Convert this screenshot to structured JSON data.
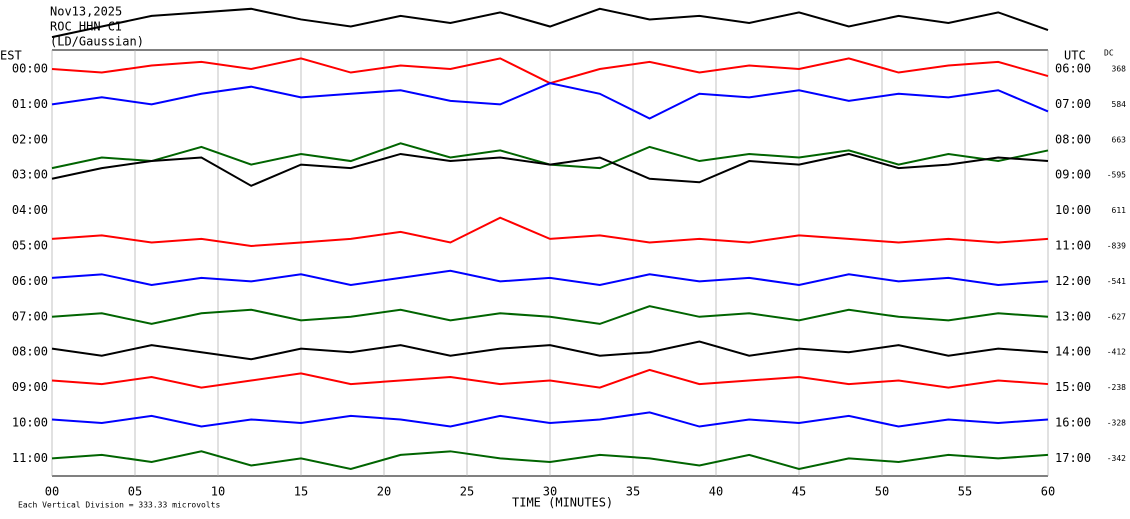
{
  "header": {
    "date": "Nov13,2025",
    "station": "ROC HHN CI",
    "filter": "(LD/Gaussian)"
  },
  "chart_data": {
    "type": "line",
    "left_axis_label": "EST",
    "right_axis_label": "UTC",
    "dc_label": "DC",
    "x_label": "TIME (MINUTES)",
    "footnote": "Each Vertical Division = 333.33 microvolts",
    "x": [
      0,
      3,
      6,
      9,
      12,
      15,
      18,
      21,
      24,
      27,
      30,
      33,
      36,
      39,
      42,
      45,
      48,
      51,
      54,
      57,
      60
    ],
    "xlim": [
      0,
      60
    ],
    "xticks": [
      {
        "value": 0,
        "label": "00"
      },
      {
        "value": 5,
        "label": "05"
      },
      10,
      15,
      20,
      25,
      30,
      35,
      40,
      45,
      50,
      55,
      60
    ],
    "grid": true,
    "series": [
      {
        "name": "00:00",
        "utc": "06:00",
        "dc": "368",
        "color": "#000000",
        "values": [
          0.9,
          1.2,
          1.5,
          1.6,
          1.7,
          1.4,
          1.2,
          1.5,
          1.3,
          1.6,
          1.2,
          1.7,
          1.4,
          1.5,
          1.3,
          1.6,
          1.2,
          1.5,
          1.3,
          1.6,
          1.1
        ]
      },
      {
        "name": "01:00",
        "utc": "07:00",
        "dc": "584",
        "color": "#ff0000",
        "values": [
          1.0,
          0.9,
          1.1,
          1.2,
          1.0,
          1.3,
          0.9,
          1.1,
          1.0,
          1.3,
          0.6,
          1.0,
          1.2,
          0.9,
          1.1,
          1.0,
          1.3,
          0.9,
          1.1,
          1.2,
          0.8
        ]
      },
      {
        "name": "02:00",
        "utc": "08:00",
        "dc": "663",
        "color": "#0000ff",
        "values": [
          1.0,
          1.2,
          1.0,
          1.3,
          1.5,
          1.2,
          1.3,
          1.4,
          1.1,
          1.0,
          1.6,
          1.3,
          0.6,
          1.3,
          1.2,
          1.4,
          1.1,
          1.3,
          1.2,
          1.4,
          0.8
        ]
      },
      {
        "name": "03:00",
        "utc": "09:00",
        "dc": "-595",
        "color": "#006400",
        "values": [
          0.2,
          0.5,
          0.4,
          0.8,
          0.3,
          0.6,
          0.4,
          0.9,
          0.5,
          0.7,
          0.3,
          0.2,
          0.8,
          0.4,
          0.6,
          0.5,
          0.7,
          0.3,
          0.6,
          0.4,
          0.7
        ]
      },
      {
        "name": "04:00",
        "utc": "10:00",
        "dc": "611",
        "color": "#000000",
        "values": [
          0.9,
          1.2,
          1.4,
          1.5,
          0.7,
          1.3,
          1.2,
          1.6,
          1.4,
          1.5,
          1.3,
          1.5,
          0.9,
          0.8,
          1.4,
          1.3,
          1.6,
          1.2,
          1.3,
          1.5,
          1.4
        ]
      },
      {
        "name": "05:00",
        "utc": "11:00",
        "dc": "-839",
        "color": "#ff0000",
        "values": [
          0.2,
          0.3,
          0.1,
          0.2,
          0.0,
          0.1,
          0.2,
          0.4,
          0.1,
          0.8,
          0.2,
          0.3,
          0.1,
          0.2,
          0.1,
          0.3,
          0.2,
          0.1,
          0.2,
          0.1,
          0.2
        ]
      },
      {
        "name": "06:00",
        "utc": "12:00",
        "dc": "-541",
        "color": "#0000ff",
        "values": [
          0.1,
          0.2,
          -0.1,
          0.1,
          0.0,
          0.2,
          -0.1,
          0.1,
          0.3,
          0.0,
          0.1,
          -0.1,
          0.2,
          0.0,
          0.1,
          -0.1,
          0.2,
          0.0,
          0.1,
          -0.1,
          0.0
        ]
      },
      {
        "name": "07:00",
        "utc": "13:00",
        "dc": "-627",
        "color": "#006400",
        "values": [
          0.0,
          0.1,
          -0.2,
          0.1,
          0.2,
          -0.1,
          0.0,
          0.2,
          -0.1,
          0.1,
          0.0,
          -0.2,
          0.3,
          0.0,
          0.1,
          -0.1,
          0.2,
          0.0,
          -0.1,
          0.1,
          0.0
        ]
      },
      {
        "name": "08:00",
        "utc": "14:00",
        "dc": "-412",
        "color": "#000000",
        "values": [
          0.1,
          -0.1,
          0.2,
          0.0,
          -0.2,
          0.1,
          0.0,
          0.2,
          -0.1,
          0.1,
          0.2,
          -0.1,
          0.0,
          0.3,
          -0.1,
          0.1,
          0.0,
          0.2,
          -0.1,
          0.1,
          0.0
        ]
      },
      {
        "name": "09:00",
        "utc": "15:00",
        "dc": "-238",
        "color": "#ff0000",
        "values": [
          0.2,
          0.1,
          0.3,
          0.0,
          0.2,
          0.4,
          0.1,
          0.2,
          0.3,
          0.1,
          0.2,
          0.0,
          0.5,
          0.1,
          0.2,
          0.3,
          0.1,
          0.2,
          0.0,
          0.2,
          0.1
        ]
      },
      {
        "name": "10:00",
        "utc": "16:00",
        "dc": "-328",
        "color": "#0000ff",
        "values": [
          0.1,
          0.0,
          0.2,
          -0.1,
          0.1,
          0.0,
          0.2,
          0.1,
          -0.1,
          0.2,
          0.0,
          0.1,
          0.3,
          -0.1,
          0.1,
          0.0,
          0.2,
          -0.1,
          0.1,
          0.0,
          0.1
        ]
      },
      {
        "name": "11:00",
        "utc": "17:00",
        "dc": "-342",
        "color": "#006400",
        "values": [
          0.0,
          0.1,
          -0.1,
          0.2,
          -0.2,
          0.0,
          -0.3,
          0.1,
          0.2,
          0.0,
          -0.1,
          0.1,
          0.0,
          -0.2,
          0.1,
          -0.3,
          0.0,
          -0.1,
          0.1,
          0.0,
          0.1
        ]
      }
    ]
  }
}
